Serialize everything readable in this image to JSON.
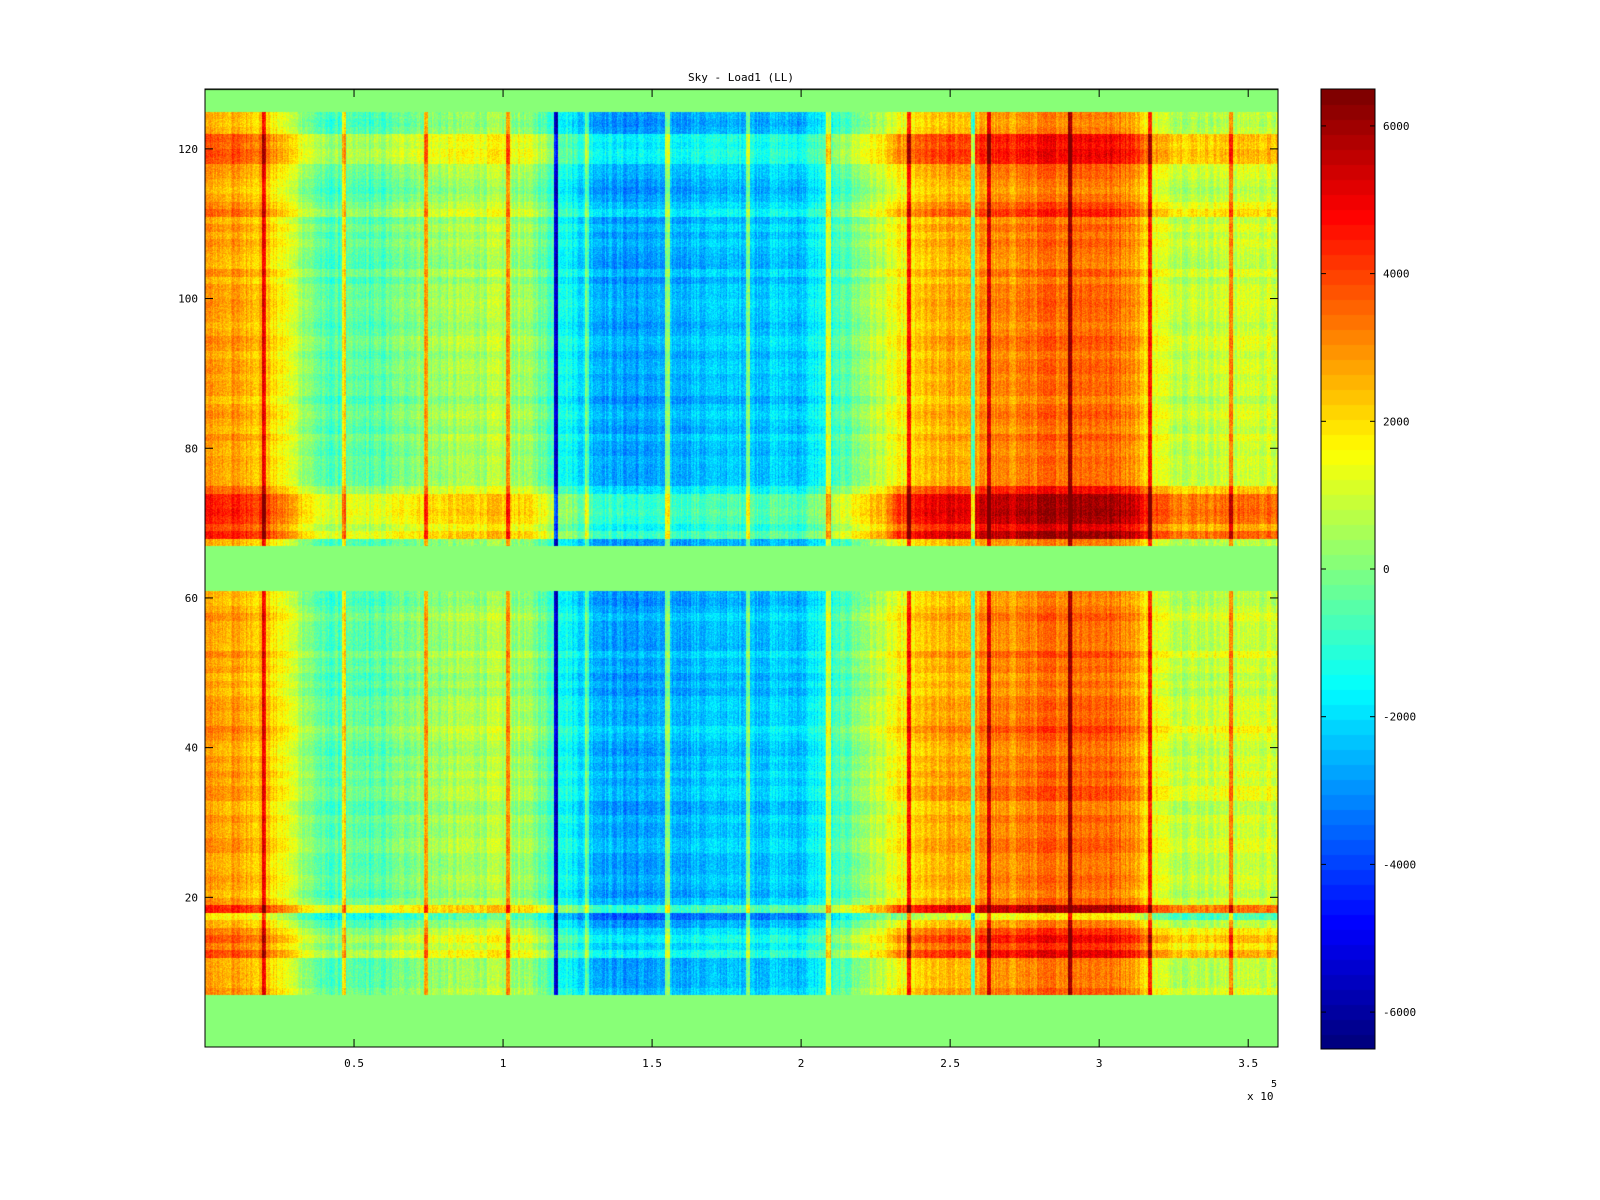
{
  "chart_data": {
    "type": "heatmap",
    "title": "Sky - Load1 (LL)",
    "xlabel": "",
    "ylabel": "",
    "x_exponent_label": "x 10",
    "x_exponent_power": "5",
    "xlim": [
      0,
      360000
    ],
    "ylim": [
      0,
      128
    ],
    "x_ticks": [
      50000,
      100000,
      150000,
      200000,
      250000,
      300000,
      350000
    ],
    "x_tick_labels": [
      "0.5",
      "1",
      "1.5",
      "2",
      "2.5",
      "3",
      "3.5"
    ],
    "y_ticks": [
      20,
      40,
      60,
      80,
      100,
      120
    ],
    "y_tick_labels": [
      "20",
      "40",
      "60",
      "80",
      "100",
      "120"
    ],
    "colorbar": {
      "range": [
        -6500,
        6500
      ],
      "ticks": [
        -6000,
        -4000,
        -2000,
        0,
        2000,
        4000,
        6000
      ],
      "tick_labels": [
        "-6000",
        "-4000",
        "-2000",
        "0",
        "2000",
        "4000",
        "6000"
      ],
      "colormap": "jet"
    },
    "empty_rows": [
      [
        0,
        7
      ],
      [
        61,
        67
      ],
      [
        125,
        128
      ]
    ],
    "empty_value": 0,
    "time_profile": [
      [
        0,
        2800
      ],
      [
        10000,
        2700
      ],
      [
        20000,
        2400
      ],
      [
        30000,
        900
      ],
      [
        40000,
        -700
      ],
      [
        50000,
        -600
      ],
      [
        60000,
        -500
      ],
      [
        70000,
        200
      ],
      [
        80000,
        300
      ],
      [
        90000,
        500
      ],
      [
        100000,
        600
      ],
      [
        110000,
        100
      ],
      [
        120000,
        -1200
      ],
      [
        130000,
        -2400
      ],
      [
        140000,
        -2800
      ],
      [
        150000,
        -2800
      ],
      [
        160000,
        -2500
      ],
      [
        170000,
        -2400
      ],
      [
        180000,
        -2300
      ],
      [
        190000,
        -2200
      ],
      [
        200000,
        -2300
      ],
      [
        210000,
        -1200
      ],
      [
        220000,
        200
      ],
      [
        230000,
        1200
      ],
      [
        240000,
        2200
      ],
      [
        250000,
        2600
      ],
      [
        260000,
        2800
      ],
      [
        270000,
        3000
      ],
      [
        280000,
        3300
      ],
      [
        290000,
        3600
      ],
      [
        300000,
        3500
      ],
      [
        310000,
        3200
      ],
      [
        320000,
        1200
      ],
      [
        330000,
        800
      ],
      [
        340000,
        900
      ],
      [
        350000,
        1000
      ],
      [
        360000,
        1000
      ]
    ],
    "row_offsets": [
      [
        8,
        11,
        -300
      ],
      [
        12,
        16,
        1200
      ],
      [
        17,
        18,
        -1500
      ],
      [
        18,
        19,
        1800
      ],
      [
        33,
        35,
        700
      ],
      [
        42,
        44,
        400
      ],
      [
        52,
        53,
        300
      ],
      [
        68,
        75,
        2000
      ],
      [
        111,
        113,
        700
      ],
      [
        118,
        122,
        1000
      ]
    ],
    "vertical_lines": [
      [
        19500,
        2500
      ],
      [
        46500,
        2500
      ],
      [
        74000,
        2500
      ],
      [
        101500,
        2500
      ],
      [
        128000,
        1800
      ],
      [
        155000,
        2500
      ],
      [
        182000,
        2500
      ],
      [
        209000,
        2500
      ],
      [
        236000,
        2500
      ],
      [
        263000,
        2500
      ],
      [
        290000,
        2500
      ],
      [
        317000,
        2500
      ],
      [
        344000,
        2500
      ],
      [
        117500,
        -4500
      ],
      [
        257500,
        -3500
      ]
    ]
  }
}
